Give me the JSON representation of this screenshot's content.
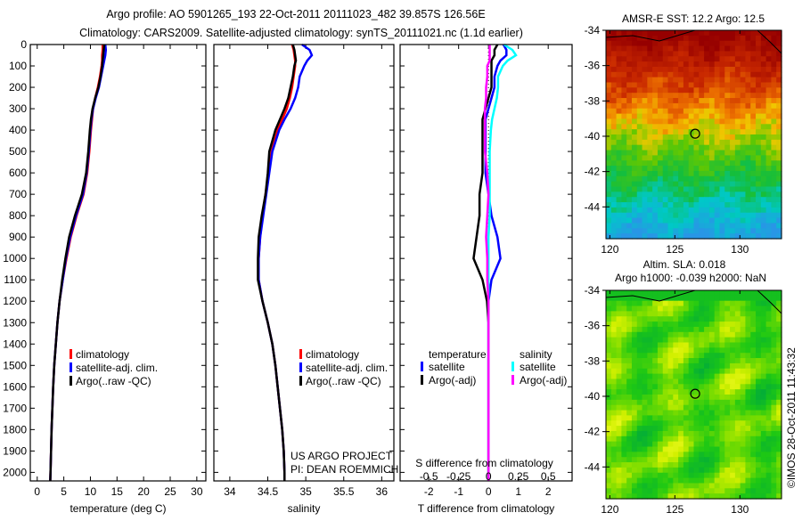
{
  "title": {
    "line1": "Argo profile: AO 5901265_193 22-Oct-2011 20111023_482 39.857S 126.56E",
    "line2": "Climatology: CARS2009. Satellite-adjusted climatology: synTS_20111021.nc (1.1d earlier)"
  },
  "copyright": "©IMOS 28-Oct-2011 11:43:32",
  "project": {
    "line1": "US ARGO PROJECT",
    "line2": "PI: DEAN ROEMMICH"
  },
  "colors": {
    "climatology": "#ff0000",
    "satellite": "#0000ff",
    "argo": "#000000",
    "sal_satellite": "#00ffff",
    "sal_argo": "#ff00ff"
  },
  "chart_data": [
    {
      "type": "line",
      "name": "temperature",
      "xlabel": "temperature (deg C)",
      "ylabel": "",
      "xlim": [
        -1.3,
        31.7
      ],
      "ylim": [
        2040,
        0
      ],
      "xticks": [
        0,
        5,
        10,
        15,
        20,
        25,
        30
      ],
      "yticks": [
        0,
        100,
        200,
        300,
        400,
        500,
        600,
        700,
        800,
        900,
        1000,
        1100,
        1200,
        1300,
        1400,
        1500,
        1600,
        1700,
        1800,
        1900,
        2000
      ],
      "depth": [
        0,
        25,
        50,
        75,
        100,
        150,
        200,
        250,
        300,
        350,
        400,
        500,
        600,
        700,
        800,
        900,
        1000,
        1100,
        1200,
        1300,
        1400,
        1500,
        1600,
        1700,
        1800,
        1900,
        2000,
        2040
      ],
      "legend": [
        "climatology",
        "satellite-adj. clim.",
        "Argo(..raw -QC)"
      ],
      "series": [
        {
          "name": "climatology",
          "color": "#ff0000",
          "values": [
            12.3,
            12.3,
            12.2,
            12.2,
            12.1,
            11.8,
            11.4,
            10.9,
            10.5,
            10.3,
            10.1,
            9.8,
            9.4,
            8.7,
            7.4,
            6.3,
            5.5,
            4.8,
            4.2,
            3.8,
            3.5,
            3.2,
            3.0,
            2.85,
            2.7,
            2.6,
            2.5,
            2.45
          ]
        },
        {
          "name": "satellite-adj. clim.",
          "color": "#0000ff",
          "values": [
            12.8,
            12.9,
            12.8,
            12.6,
            12.4,
            12.0,
            11.6,
            11.0,
            10.5,
            10.2,
            10.0,
            9.7,
            9.3,
            8.6,
            7.3,
            6.2,
            5.4,
            4.8,
            4.2,
            3.8,
            3.5,
            3.2,
            3.0,
            2.85,
            2.7,
            2.6,
            2.5,
            2.45
          ]
        },
        {
          "name": "Argo(..raw -QC)",
          "color": "#000000",
          "values": [
            12.6,
            12.5,
            12.4,
            12.3,
            12.2,
            11.9,
            11.5,
            10.9,
            10.4,
            10.1,
            9.9,
            9.6,
            9.2,
            8.4,
            7.1,
            6.0,
            5.3,
            4.7,
            4.2,
            3.8,
            3.5,
            3.2,
            3.0,
            2.85,
            2.7,
            2.6,
            2.5,
            2.45
          ]
        }
      ]
    },
    {
      "type": "line",
      "name": "salinity",
      "xlabel": "salinity",
      "xlim": [
        33.79,
        36.16
      ],
      "ylim": [
        2040,
        0
      ],
      "xticks": [
        34,
        34.5,
        35,
        35.5,
        36
      ],
      "depth": [
        0,
        25,
        50,
        75,
        100,
        150,
        200,
        250,
        300,
        350,
        400,
        500,
        600,
        700,
        800,
        900,
        1000,
        1100,
        1200,
        1300,
        1400,
        1500,
        1600,
        1700,
        1800,
        1900,
        2000,
        2040
      ],
      "legend": [
        "climatology",
        "satellite-adj. clim.",
        "Argo(..raw -QC)"
      ],
      "series": [
        {
          "name": "climatology",
          "color": "#ff0000",
          "values": [
            34.82,
            34.84,
            34.85,
            34.86,
            34.86,
            34.84,
            34.82,
            34.79,
            34.75,
            34.69,
            34.63,
            34.55,
            34.51,
            34.47,
            34.43,
            34.4,
            34.38,
            34.38,
            34.43,
            34.5,
            34.56,
            34.6,
            34.63,
            34.66,
            34.69,
            34.71,
            34.72,
            34.72
          ]
        },
        {
          "name": "satellite-adj. clim.",
          "color": "#0000ff",
          "values": [
            34.95,
            35.05,
            35.08,
            35.02,
            34.98,
            34.92,
            34.9,
            34.86,
            34.8,
            34.72,
            34.65,
            34.56,
            34.52,
            34.48,
            34.44,
            34.4,
            34.38,
            34.38,
            34.43,
            34.5,
            34.56,
            34.6,
            34.63,
            34.66,
            34.69,
            34.71,
            34.72,
            34.72
          ]
        },
        {
          "name": "Argo(..raw -QC)",
          "color": "#000000",
          "values": [
            34.83,
            34.85,
            34.86,
            34.87,
            34.85,
            34.83,
            34.8,
            34.77,
            34.72,
            34.66,
            34.6,
            34.52,
            34.5,
            34.47,
            34.42,
            34.38,
            34.37,
            34.37,
            34.43,
            34.5,
            34.56,
            34.6,
            34.63,
            34.66,
            34.69,
            34.71,
            34.72,
            34.72
          ]
        }
      ]
    },
    {
      "type": "line",
      "name": "difference",
      "xlabel": "T difference from climatology",
      "x2label": "S difference from climatology",
      "xlim": [
        -2.96,
        2.8
      ],
      "x2lim": [
        -0.74,
        0.7
      ],
      "xticks": [
        -2,
        -1,
        0,
        1,
        2
      ],
      "x2ticks": [
        -0.5,
        -0.25,
        0,
        0.25,
        0.5
      ],
      "x2ticklabels": [
        "-0.5",
        "-0.25",
        "0",
        "0.25",
        "0.5"
      ],
      "depth": [
        0,
        25,
        50,
        75,
        100,
        150,
        200,
        250,
        300,
        350,
        400,
        500,
        600,
        700,
        800,
        900,
        1000,
        1100,
        1200,
        1300,
        1400,
        1500,
        1600,
        1700,
        1800,
        1900,
        2000,
        2040
      ],
      "legend": {
        "temperature": "temperature",
        "salinity": "salinity",
        "t_sat": "satellite",
        "t_argo": "Argo(-adj)",
        "s_sat": "satellite",
        "s_argo": "Argo(-adj)"
      },
      "series": [
        {
          "name": "T satellite",
          "axis": "T",
          "color": "#0000ff",
          "values": [
            0.5,
            0.6,
            0.6,
            0.4,
            0.3,
            0.2,
            0.2,
            0.1,
            0,
            -0.1,
            -0.1,
            -0.1,
            -0.1,
            0,
            0.1,
            0.3,
            0.4,
            0.1,
            0,
            0,
            0,
            0,
            0,
            0,
            0,
            0,
            0,
            0
          ]
        },
        {
          "name": "T Argo(-adj)",
          "axis": "T",
          "color": "#000000",
          "values": [
            0.3,
            0.2,
            0.2,
            0.1,
            0.1,
            0.1,
            0.1,
            0,
            -0.1,
            -0.2,
            -0.2,
            -0.2,
            -0.2,
            -0.3,
            -0.3,
            -0.4,
            -0.5,
            -0.2,
            -0.05,
            0,
            0,
            0,
            0,
            0,
            0,
            0,
            0,
            0
          ]
        },
        {
          "name": "S satellite",
          "axis": "S",
          "color": "#00ffff",
          "values": [
            0.13,
            0.2,
            0.23,
            0.16,
            0.12,
            0.08,
            0.08,
            0.07,
            0.05,
            0.03,
            0.02,
            0.01,
            0.01,
            0.01,
            0.01,
            0,
            0,
            0,
            0,
            0,
            0,
            0,
            0,
            0,
            0,
            0,
            0,
            0
          ]
        },
        {
          "name": "S Argo(-adj)",
          "axis": "S",
          "color": "#ff00ff",
          "values": [
            0.01,
            0.01,
            0.01,
            0.01,
            -0.01,
            -0.01,
            -0.02,
            -0.02,
            -0.03,
            -0.03,
            -0.03,
            -0.03,
            -0.01,
            0,
            -0.01,
            -0.02,
            -0.01,
            -0.01,
            0,
            0,
            0,
            0,
            0,
            0,
            0,
            0,
            0,
            0
          ]
        }
      ]
    },
    {
      "type": "heatmap",
      "name": "sst-map",
      "title": "AMSR-E SST: 12.2 Argo: 12.5",
      "xlim": [
        119.7,
        133.2
      ],
      "ylim": [
        -45.8,
        -34
      ],
      "xticks": [
        120,
        125,
        130
      ],
      "yticks": [
        -34,
        -36,
        -38,
        -40,
        -42,
        -44
      ],
      "marker": {
        "lon": 126.56,
        "lat": -39.857
      }
    },
    {
      "type": "heatmap",
      "name": "sla-map",
      "title": "Altim. SLA: 0.018",
      "subtitle": "Argo h1000: -0.039 h2000: NaN",
      "xlim": [
        119.7,
        133.2
      ],
      "ylim": [
        -45.8,
        -34
      ],
      "xticks": [
        120,
        125,
        130
      ],
      "yticks": [
        -34,
        -36,
        -38,
        -40,
        -42,
        -44
      ],
      "marker": {
        "lon": 126.56,
        "lat": -39.857
      }
    }
  ]
}
